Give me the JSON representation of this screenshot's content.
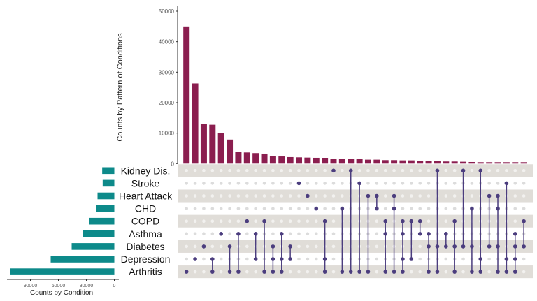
{
  "chart_data": {
    "type": "upset",
    "colors": {
      "intersection_bar": "#8b1e4f",
      "set_bar": "#0d8a8a",
      "dot_active": "#4b3d7e",
      "dot_inactive": "#dcdcdc",
      "stripe": "#e0ddd8"
    },
    "intersection_axis": {
      "label": "Counts by Pattern of Conditions",
      "ylim": [
        0,
        52000
      ],
      "ticks": [
        "0",
        "10000",
        "20000",
        "30000",
        "40000",
        "50000"
      ]
    },
    "set_axis": {
      "label": "Counts by Condition",
      "xlim": [
        0,
        115000
      ],
      "ticks": [
        "90000",
        "60000",
        "30000",
        "0"
      ],
      "tick_values": [
        90000,
        60000,
        30000,
        0
      ]
    },
    "sets": [
      {
        "name": "Kidney Dis.",
        "size": 13000
      },
      {
        "name": "Stroke",
        "size": 12500
      },
      {
        "name": "Heart Attack",
        "size": 18000
      },
      {
        "name": "CHD",
        "size": 19750
      },
      {
        "name": "COPD",
        "size": 26750
      },
      {
        "name": "Asthma",
        "size": 34000
      },
      {
        "name": "Diabetes",
        "size": 45750
      },
      {
        "name": "Depression",
        "size": 68250
      },
      {
        "name": "Arthritis",
        "size": 112000
      }
    ],
    "intersections": [
      {
        "sets": [
          "Arthritis"
        ],
        "count": 45000
      },
      {
        "sets": [
          "Depression"
        ],
        "count": 26300
      },
      {
        "sets": [
          "Diabetes"
        ],
        "count": 12900
      },
      {
        "sets": [
          "Depression",
          "Arthritis"
        ],
        "count": 12750
      },
      {
        "sets": [
          "Asthma"
        ],
        "count": 10100
      },
      {
        "sets": [
          "Diabetes",
          "Arthritis"
        ],
        "count": 7900
      },
      {
        "sets": [
          "Asthma",
          "Arthritis"
        ],
        "count": 3850
      },
      {
        "sets": [
          "COPD"
        ],
        "count": 3660
      },
      {
        "sets": [
          "Asthma",
          "Depression"
        ],
        "count": 3450
      },
      {
        "sets": [
          "COPD",
          "Arthritis"
        ],
        "count": 3280
      },
      {
        "sets": [
          "Diabetes",
          "Depression",
          "Arthritis"
        ],
        "count": 2520
      },
      {
        "sets": [
          "Asthma",
          "Depression",
          "Arthritis"
        ],
        "count": 2350
      },
      {
        "sets": [
          "Diabetes",
          "Depression"
        ],
        "count": 2140
      },
      {
        "sets": [
          "Stroke"
        ],
        "count": 2060
      },
      {
        "sets": [
          "Heart Attack"
        ],
        "count": 1980
      },
      {
        "sets": [
          "CHD"
        ],
        "count": 1910
      },
      {
        "sets": [
          "COPD",
          "Depression",
          "Arthritis"
        ],
        "count": 1900
      },
      {
        "sets": [
          "Kidney Dis."
        ],
        "count": 1600
      },
      {
        "sets": [
          "CHD",
          "Arthritis"
        ],
        "count": 1600
      },
      {
        "sets": [
          "Kidney Dis.",
          "Arthritis"
        ],
        "count": 1450
      },
      {
        "sets": [
          "Stroke",
          "Arthritis"
        ],
        "count": 1450
      },
      {
        "sets": [
          "Heart Attack",
          "Arthritis"
        ],
        "count": 1300
      },
      {
        "sets": [
          "Heart Attack",
          "CHD"
        ],
        "count": 1300
      },
      {
        "sets": [
          "COPD",
          "Asthma",
          "Arthritis"
        ],
        "count": 1150
      },
      {
        "sets": [
          "Heart Attack",
          "CHD",
          "Arthritis"
        ],
        "count": 1150
      },
      {
        "sets": [
          "COPD",
          "Asthma",
          "Depression",
          "Arthritis"
        ],
        "count": 1070
      },
      {
        "sets": [
          "COPD",
          "Depression"
        ],
        "count": 1070
      },
      {
        "sets": [
          "COPD",
          "Asthma"
        ],
        "count": 920
      },
      {
        "sets": [
          "Asthma",
          "Diabetes",
          "Arthritis"
        ],
        "count": 840
      },
      {
        "sets": [
          "Kidney Dis.",
          "Diabetes",
          "Arthritis"
        ],
        "count": 760
      },
      {
        "sets": [
          "Asthma",
          "Diabetes"
        ],
        "count": 700
      },
      {
        "sets": [
          "COPD",
          "Diabetes",
          "Arthritis"
        ],
        "count": 690
      },
      {
        "sets": [
          "Kidney Dis.",
          "Diabetes"
        ],
        "count": 610
      },
      {
        "sets": [
          "CHD",
          "Diabetes",
          "Arthritis"
        ],
        "count": 530
      },
      {
        "sets": [
          "Kidney Dis.",
          "Depression",
          "Arthritis"
        ],
        "count": 460
      },
      {
        "sets": [
          "Heart Attack",
          "Diabetes"
        ],
        "count": 460
      },
      {
        "sets": [
          "Heart Attack",
          "CHD",
          "Diabetes",
          "Arthritis"
        ],
        "count": 460
      },
      {
        "sets": [
          "Stroke",
          "Depression",
          "Arthritis"
        ],
        "count": 460
      },
      {
        "sets": [
          "Asthma",
          "Diabetes",
          "Depression",
          "Arthritis"
        ],
        "count": 460
      },
      {
        "sets": [
          "COPD",
          "Diabetes"
        ],
        "count": 460
      }
    ]
  }
}
